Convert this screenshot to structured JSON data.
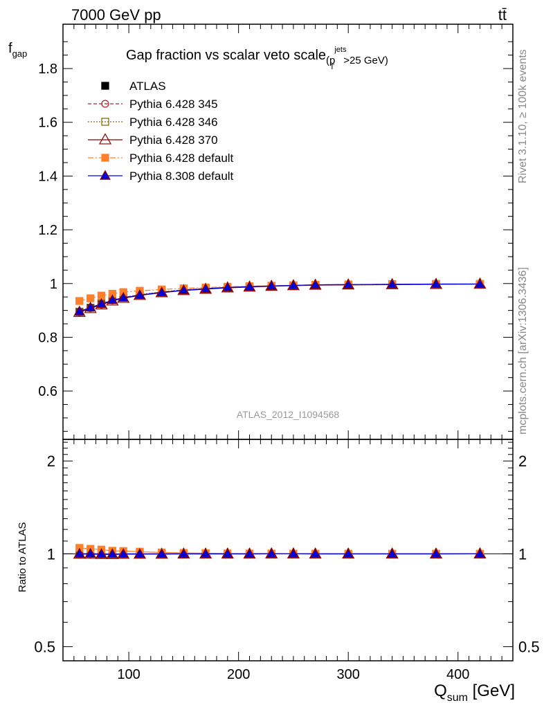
{
  "header": {
    "left": "7000 GeV pp",
    "right": "tt̄"
  },
  "side_labels": {
    "rivet": "Rivet 3.1.10, ≥ 100k events",
    "mcplots": "mcplots.cern.ch [arXiv:1306.3436]"
  },
  "chart_data": [
    {
      "type": "line",
      "panel": "main",
      "title_main": "Gap fraction vs scalar veto scale",
      "title_sub_prefix": "(p",
      "title_sub_sup": "jets",
      "title_sub_sub": "T",
      "title_sub_suffix": ">25 GeV)",
      "ylabel_main": "f",
      "ylabel_sub": "gap",
      "watermark": "ATLAS_2012_I1094568",
      "ylim": [
        0.42,
        1.965
      ],
      "xlim": [
        40,
        450
      ],
      "yticks": [
        "0.6",
        "0.8",
        "1",
        "1.2",
        "1.4",
        "1.6",
        "1.8"
      ],
      "x": [
        55,
        65,
        75,
        85,
        95,
        110,
        130,
        150,
        170,
        190,
        210,
        230,
        250,
        270,
        300,
        340,
        380,
        420
      ],
      "legend_position": "top-left",
      "series": [
        {
          "name": "ATLAS",
          "color": "#000000",
          "marker": "square",
          "line": "none",
          "values": [
            0.895,
            0.91,
            0.925,
            0.94,
            0.948,
            0.958,
            0.968,
            0.975,
            0.98,
            0.985,
            0.988,
            0.99,
            0.992,
            0.995,
            0.996,
            0.997,
            0.998,
            0.998
          ]
        },
        {
          "name": "Pythia 6.428 345",
          "color": "#b22222",
          "marker": "circle-open",
          "line": "dashed",
          "values": [
            0.893,
            0.908,
            0.922,
            0.937,
            0.947,
            0.958,
            0.968,
            0.976,
            0.981,
            0.986,
            0.989,
            0.991,
            0.993,
            0.995,
            0.996,
            0.997,
            0.998,
            0.998
          ]
        },
        {
          "name": "Pythia 6.428 346",
          "color": "#8b6914",
          "marker": "square-open",
          "line": "dotted",
          "values": [
            0.895,
            0.91,
            0.924,
            0.938,
            0.948,
            0.959,
            0.969,
            0.977,
            0.982,
            0.986,
            0.989,
            0.991,
            0.993,
            0.995,
            0.996,
            0.997,
            0.998,
            0.998
          ]
        },
        {
          "name": "Pythia 6.428 370",
          "color": "#8b0000",
          "marker": "triangle-open",
          "line": "solid",
          "values": [
            0.893,
            0.907,
            0.921,
            0.935,
            0.945,
            0.956,
            0.966,
            0.974,
            0.979,
            0.984,
            0.987,
            0.99,
            0.992,
            0.994,
            0.995,
            0.996,
            0.997,
            0.998
          ]
        },
        {
          "name": "Pythia 6.428 default",
          "color": "#ff7f2a",
          "marker": "square",
          "line": "dashdot",
          "values": [
            0.935,
            0.945,
            0.955,
            0.962,
            0.968,
            0.973,
            0.978,
            0.982,
            0.985,
            0.988,
            0.99,
            0.992,
            0.993,
            0.995,
            0.996,
            0.997,
            0.998,
            0.998
          ]
        },
        {
          "name": "Pythia 8.308 default",
          "color": "#0000dd",
          "marker": "triangle",
          "line": "solid",
          "values": [
            0.896,
            0.911,
            0.924,
            0.938,
            0.947,
            0.957,
            0.967,
            0.975,
            0.98,
            0.985,
            0.988,
            0.991,
            0.993,
            0.995,
            0.996,
            0.997,
            0.998,
            0.998
          ]
        }
      ]
    },
    {
      "type": "line",
      "panel": "ratio",
      "ylabel": "Ratio to ATLAS",
      "xlabel_main": "Q",
      "xlabel_sub": "sum",
      "xlabel_unit": " [GeV]",
      "ylim": [
        0.45,
        2.35
      ],
      "log_y": true,
      "xlim": [
        40,
        450
      ],
      "xticks": [
        "100",
        "200",
        "300",
        "400"
      ],
      "yticks": [
        "0.5",
        "1",
        "2"
      ],
      "x": [
        55,
        65,
        75,
        85,
        95,
        110,
        130,
        150,
        170,
        190,
        210,
        230,
        250,
        270,
        300,
        340,
        380,
        420
      ],
      "series": [
        {
          "name": "Pythia 6.428 345",
          "color": "#b22222",
          "marker": "circle-open",
          "values": [
            0.998,
            0.998,
            0.997,
            0.997,
            0.999,
            1.0,
            1.0,
            1.001,
            1.001,
            1.001,
            1.001,
            1.001,
            1.001,
            1.0,
            1.0,
            1.0,
            1.0,
            1.0
          ]
        },
        {
          "name": "Pythia 6.428 346",
          "color": "#8b6914",
          "marker": "square-open",
          "values": [
            1.0,
            1.0,
            0.999,
            0.998,
            1.0,
            1.001,
            1.001,
            1.002,
            1.002,
            1.001,
            1.001,
            1.001,
            1.001,
            1.0,
            1.0,
            1.0,
            1.0,
            1.0
          ]
        },
        {
          "name": "Pythia 6.428 370",
          "color": "#8b0000",
          "marker": "triangle-open",
          "values": [
            0.998,
            0.997,
            0.996,
            0.995,
            0.997,
            0.998,
            0.998,
            0.999,
            0.999,
            0.999,
            0.999,
            1.0,
            1.0,
            0.999,
            0.999,
            0.999,
            0.999,
            1.0
          ]
        },
        {
          "name": "Pythia 6.428 default",
          "color": "#ff7f2a",
          "marker": "square",
          "values": [
            1.045,
            1.038,
            1.032,
            1.023,
            1.021,
            1.016,
            1.01,
            1.007,
            1.005,
            1.003,
            1.002,
            1.002,
            1.001,
            1.0,
            1.0,
            1.0,
            1.0,
            1.0
          ]
        },
        {
          "name": "Pythia 8.308 default",
          "color": "#0000dd",
          "marker": "triangle",
          "values": [
            1.001,
            1.001,
            0.999,
            0.998,
            0.999,
            0.999,
            0.999,
            1.0,
            1.0,
            1.0,
            1.0,
            1.001,
            1.001,
            1.0,
            1.0,
            1.0,
            1.0,
            1.0
          ]
        }
      ]
    }
  ]
}
